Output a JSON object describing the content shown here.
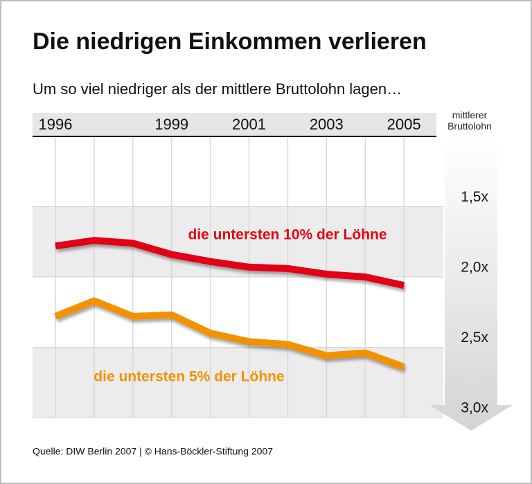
{
  "chart_data": {
    "type": "line",
    "title": "Die niedrigen Einkommen verlieren",
    "subtitle": "Um so viel niedriger als der mittlere Bruttolohn lagen…",
    "source": "Quelle: DIW Berlin 2007 | © Hans-Böckler-Stiftung 2007",
    "y_label": "mittlerer Bruttolohn",
    "categories": [
      "1996",
      null,
      null,
      "1999",
      null,
      "2001",
      null,
      "2003",
      null,
      "2005"
    ],
    "series": [
      {
        "name": "die untersten 10% der Löhne",
        "color": "#e30613",
        "values": [
          1.78,
          1.74,
          1.76,
          1.84,
          1.89,
          1.93,
          1.94,
          1.98,
          2.0,
          2.06
        ]
      },
      {
        "name": "die untersten 5% der Löhne",
        "color": "#f39200",
        "values": [
          2.28,
          2.17,
          2.28,
          2.27,
          2.4,
          2.46,
          2.48,
          2.56,
          2.54,
          2.64
        ]
      }
    ],
    "ylim": [
      1.0,
      3.0
    ],
    "y_inverted": true,
    "yticks": [
      {
        "value": 1.5,
        "label": "1,5x"
      },
      {
        "value": 2.0,
        "label": "2,0x"
      },
      {
        "value": 2.5,
        "label": "2,5x"
      },
      {
        "value": 3.0,
        "label": "3,0x"
      }
    ],
    "grid": true
  }
}
